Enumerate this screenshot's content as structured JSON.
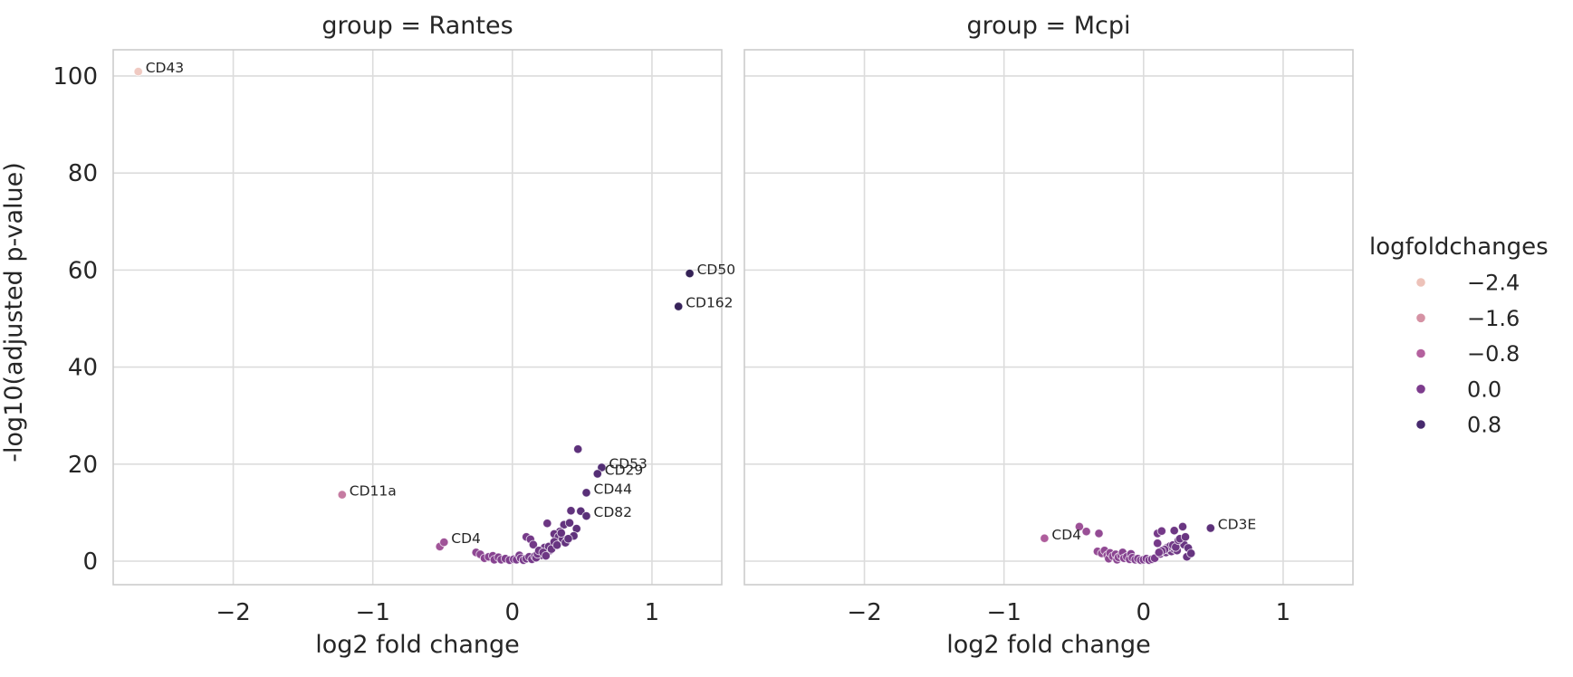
{
  "chart_data": {
    "type": "scatter",
    "kind": "faceted-volcano-plot",
    "xlabel": "log2 fold change",
    "ylabel": "-log10(adjusted p-value)",
    "xlim": [
      -2.86,
      1.5
    ],
    "ylim": [
      -4.85,
      105.4
    ],
    "xticks": [
      -2,
      -1,
      0,
      1
    ],
    "xtick_labels": [
      "−2",
      "−1",
      "0",
      "1"
    ],
    "yticks": [
      0,
      20,
      40,
      60,
      80,
      100
    ],
    "ytick_labels": [
      "0",
      "20",
      "40",
      "60",
      "80",
      "100"
    ],
    "grid": true,
    "legend": {
      "title": "logfoldchanges",
      "position": "right",
      "entries": [
        {
          "label": "−2.4",
          "value": -2.4,
          "color": "#edc2b9"
        },
        {
          "label": "−1.6",
          "value": -1.6,
          "color": "#d592a4"
        },
        {
          "label": "−0.8",
          "value": -0.8,
          "color": "#b4619e"
        },
        {
          "label": "0.0",
          "value": 0.0,
          "color": "#7d3c8d"
        },
        {
          "label": "0.8",
          "value": 0.8,
          "color": "#472a6e"
        }
      ]
    },
    "palette_stops": [
      [
        -2.9,
        "#f2d1c9"
      ],
      [
        -2.4,
        "#edc2b9"
      ],
      [
        -1.6,
        "#d592a4"
      ],
      [
        -0.8,
        "#b4619e"
      ],
      [
        0.0,
        "#7d3c8d"
      ],
      [
        0.8,
        "#472a6e"
      ],
      [
        1.5,
        "#2a1e4a"
      ]
    ],
    "facets": [
      {
        "title": "group = Rantes",
        "labeled_points": [
          {
            "label": "CD43",
            "x": -2.68,
            "y": 100.9
          },
          {
            "label": "CD50",
            "x": 1.27,
            "y": 59.3
          },
          {
            "label": "CD162",
            "x": 1.19,
            "y": 52.5
          },
          {
            "label": "CD53",
            "x": 0.64,
            "y": 19.3
          },
          {
            "label": "CD29",
            "x": 0.61,
            "y": 18.0
          },
          {
            "label": "CD44",
            "x": 0.53,
            "y": 14.1
          },
          {
            "label": "CD82",
            "x": 0.53,
            "y": 9.3
          },
          {
            "label": "CD11a",
            "x": -1.22,
            "y": 13.7
          },
          {
            "label": "CD4",
            "x": -0.49,
            "y": 3.9
          }
        ],
        "points": [
          [
            -0.52,
            3.0
          ],
          [
            0.47,
            23.1
          ],
          [
            0.42,
            10.4
          ],
          [
            0.49,
            10.3
          ],
          [
            0.25,
            7.8
          ],
          [
            0.37,
            7.5
          ],
          [
            0.46,
            6.7
          ],
          [
            0.41,
            7.9
          ],
          [
            0.34,
            6.1
          ],
          [
            0.3,
            5.6
          ],
          [
            0.33,
            5.0
          ],
          [
            0.36,
            4.6
          ],
          [
            0.39,
            4.2
          ],
          [
            0.44,
            5.2
          ],
          [
            0.35,
            5.8
          ],
          [
            0.1,
            5.0
          ],
          [
            0.13,
            4.5
          ],
          [
            0.15,
            3.4
          ],
          [
            0.23,
            2.8
          ],
          [
            0.27,
            2.2
          ],
          [
            0.21,
            1.2
          ],
          [
            0.26,
            3.0
          ],
          [
            0.28,
            2.5
          ],
          [
            0.3,
            4.0
          ],
          [
            0.32,
            3.3
          ],
          [
            0.38,
            3.8
          ],
          [
            0.4,
            4.6
          ],
          [
            -0.26,
            1.8
          ],
          [
            -0.23,
            1.4
          ],
          [
            -0.2,
            0.6
          ],
          [
            -0.17,
            0.9
          ],
          [
            -0.14,
            1.1
          ],
          [
            -0.13,
            0.3
          ],
          [
            -0.1,
            0.8
          ],
          [
            -0.08,
            0.3
          ],
          [
            -0.05,
            0.5
          ],
          [
            -0.02,
            0.2
          ],
          [
            0.01,
            0.4
          ],
          [
            0.03,
            0.3
          ],
          [
            0.05,
            1.2
          ],
          [
            0.06,
            0.6
          ],
          [
            0.08,
            0.2
          ],
          [
            0.1,
            0.5
          ],
          [
            0.12,
            0.9
          ],
          [
            0.14,
            0.4
          ],
          [
            0.16,
            1.0
          ],
          [
            0.17,
            0.7
          ],
          [
            0.18,
            1.5
          ],
          [
            0.19,
            2.2
          ],
          [
            0.22,
            1.8
          ],
          [
            0.24,
            1.1
          ]
        ]
      },
      {
        "title": "group = Mcpi",
        "labeled_points": [
          {
            "label": "CD4",
            "x": -0.71,
            "y": 4.7
          },
          {
            "label": "CD3E",
            "x": 0.48,
            "y": 6.8
          }
        ],
        "points": [
          [
            -0.46,
            7.1
          ],
          [
            -0.41,
            6.1
          ],
          [
            -0.32,
            5.7
          ],
          [
            -0.33,
            2.0
          ],
          [
            -0.3,
            1.6
          ],
          [
            -0.28,
            2.2
          ],
          [
            -0.26,
            1.2
          ],
          [
            -0.25,
            0.5
          ],
          [
            -0.24,
            1.7
          ],
          [
            -0.22,
            1.0
          ],
          [
            -0.2,
            1.4
          ],
          [
            -0.19,
            0.3
          ],
          [
            -0.18,
            0.8
          ],
          [
            -0.16,
            1.2
          ],
          [
            -0.15,
            1.8
          ],
          [
            -0.14,
            0.6
          ],
          [
            -0.12,
            0.9
          ],
          [
            -0.1,
            0.4
          ],
          [
            -0.09,
            1.5
          ],
          [
            -0.08,
            0.7
          ],
          [
            -0.06,
            0.3
          ],
          [
            -0.04,
            0.5
          ],
          [
            -0.02,
            0.2
          ],
          [
            0.0,
            0.3
          ],
          [
            0.02,
            0.5
          ],
          [
            0.04,
            0.2
          ],
          [
            0.06,
            0.4
          ],
          [
            0.08,
            0.6
          ],
          [
            0.1,
            3.7
          ],
          [
            0.1,
            5.7
          ],
          [
            0.13,
            6.2
          ],
          [
            0.22,
            6.3
          ],
          [
            0.28,
            7.1
          ],
          [
            0.27,
            3.9
          ],
          [
            0.29,
            3.4
          ],
          [
            0.31,
            0.9
          ],
          [
            0.12,
            1.5
          ],
          [
            0.14,
            2.0
          ],
          [
            0.16,
            1.8
          ],
          [
            0.18,
            2.3
          ],
          [
            0.2,
            2.0
          ],
          [
            0.22,
            2.5
          ],
          [
            0.24,
            2.2
          ],
          [
            0.17,
            2.8
          ],
          [
            0.19,
            3.1
          ],
          [
            0.21,
            3.3
          ],
          [
            0.23,
            2.9
          ],
          [
            0.25,
            4.3
          ],
          [
            0.26,
            4.6
          ],
          [
            0.15,
            2.4
          ],
          [
            0.13,
            2.1
          ],
          [
            0.11,
            1.8
          ],
          [
            0.3,
            5.0
          ],
          [
            0.32,
            2.7
          ],
          [
            0.34,
            1.6
          ]
        ]
      }
    ]
  },
  "colors": {
    "background": "#ffffff",
    "grid": "#dcdcdc",
    "spine": "#cccccc",
    "text": "#262626",
    "point_edge": "rgba(255,255,255,0.75)"
  }
}
